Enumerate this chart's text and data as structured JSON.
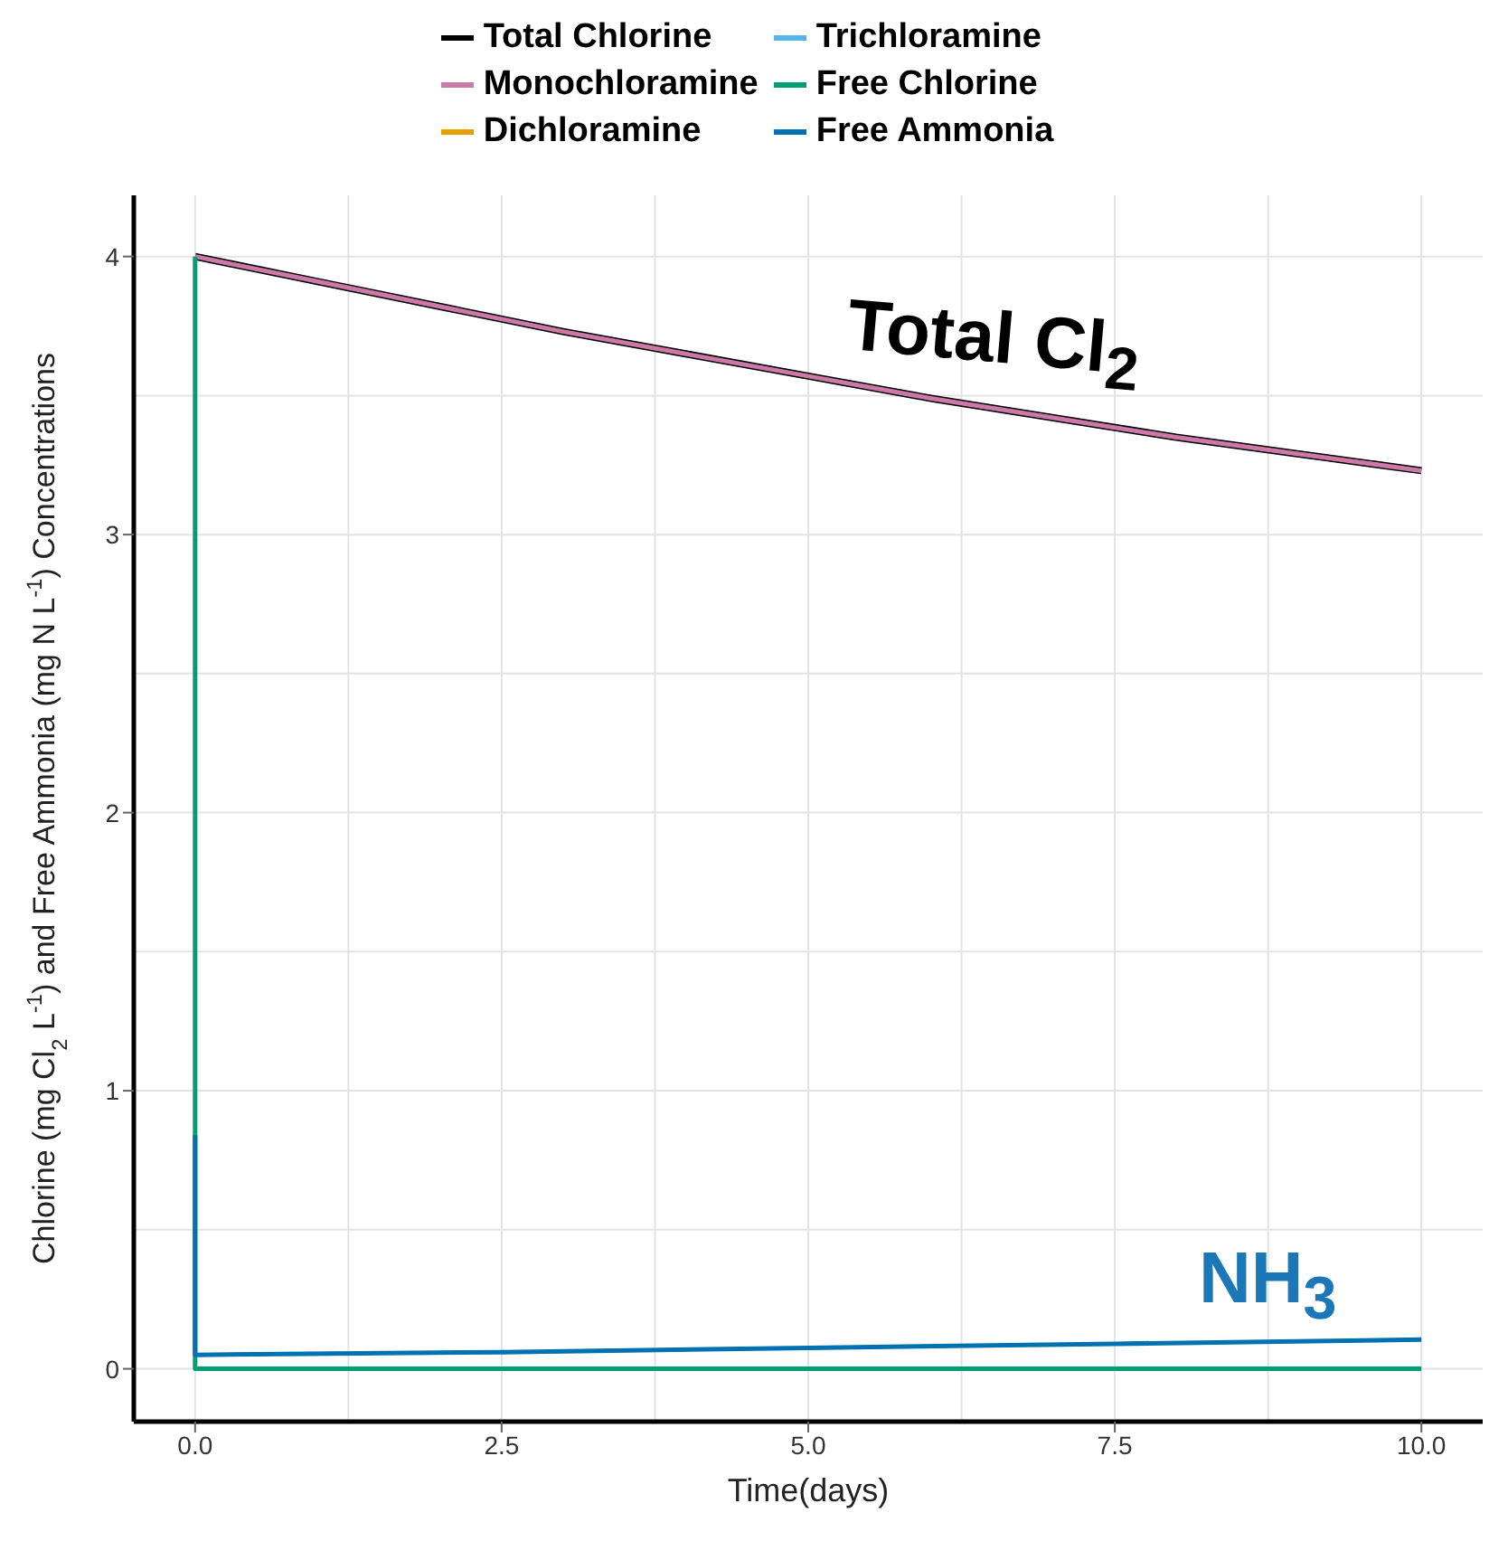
{
  "chart_data": {
    "type": "line",
    "xlabel": "Time(days)",
    "ylabel": "Chlorine (mg Cl$_{2}$ L$^{-1}$) and Free Ammonia (mg N L$^{-1}$) Concentrations",
    "xlim": [
      -0.5,
      10.5
    ],
    "ylim": [
      -0.19,
      4.22
    ],
    "xticks": [
      {
        "value": 0,
        "label": "0.0"
      },
      {
        "value": 2.5,
        "label": "2.5"
      },
      {
        "value": 5,
        "label": "5.0"
      },
      {
        "value": 7.5,
        "label": "7.5"
      },
      {
        "value": 10,
        "label": "10.0"
      }
    ],
    "yticks": [
      0,
      1,
      2,
      3,
      4
    ],
    "grid": true,
    "legend": "top",
    "marker": "none",
    "line_style": "solid",
    "series": [
      {
        "name": "Total Chlorine",
        "color": "#000000",
        "x": [
          0,
          1,
          2,
          3,
          4,
          5,
          6,
          7,
          8,
          9,
          10
        ],
        "values": [
          4.0,
          3.91,
          3.82,
          3.73,
          3.65,
          3.57,
          3.49,
          3.42,
          3.35,
          3.29,
          3.23
        ]
      },
      {
        "name": "Monochloramine",
        "color": "#cc79a7",
        "x": [
          0,
          1,
          2,
          3,
          4,
          5,
          6,
          7,
          8,
          9,
          10
        ],
        "values": [
          4.0,
          3.91,
          3.82,
          3.73,
          3.65,
          3.57,
          3.49,
          3.42,
          3.35,
          3.29,
          3.23
        ]
      },
      {
        "name": "Dichloramine",
        "color": "#e69f00"
      },
      {
        "name": "Trichloramine",
        "color": "#56b4e9"
      },
      {
        "name": "Free Chlorine",
        "color": "#009e73",
        "x": [
          0,
          0,
          10
        ],
        "values": [
          4.0,
          0,
          0
        ]
      },
      {
        "name": "Free Ammonia",
        "color": "#0072b2",
        "x": [
          0,
          0,
          2.5,
          5,
          7.5,
          10
        ],
        "values": [
          0.84,
          0.05,
          0.06,
          0.075,
          0.09,
          0.105
        ]
      }
    ],
    "annotations": [
      "Total Cl$_{2}$",
      "NH$_{3}$"
    ]
  }
}
